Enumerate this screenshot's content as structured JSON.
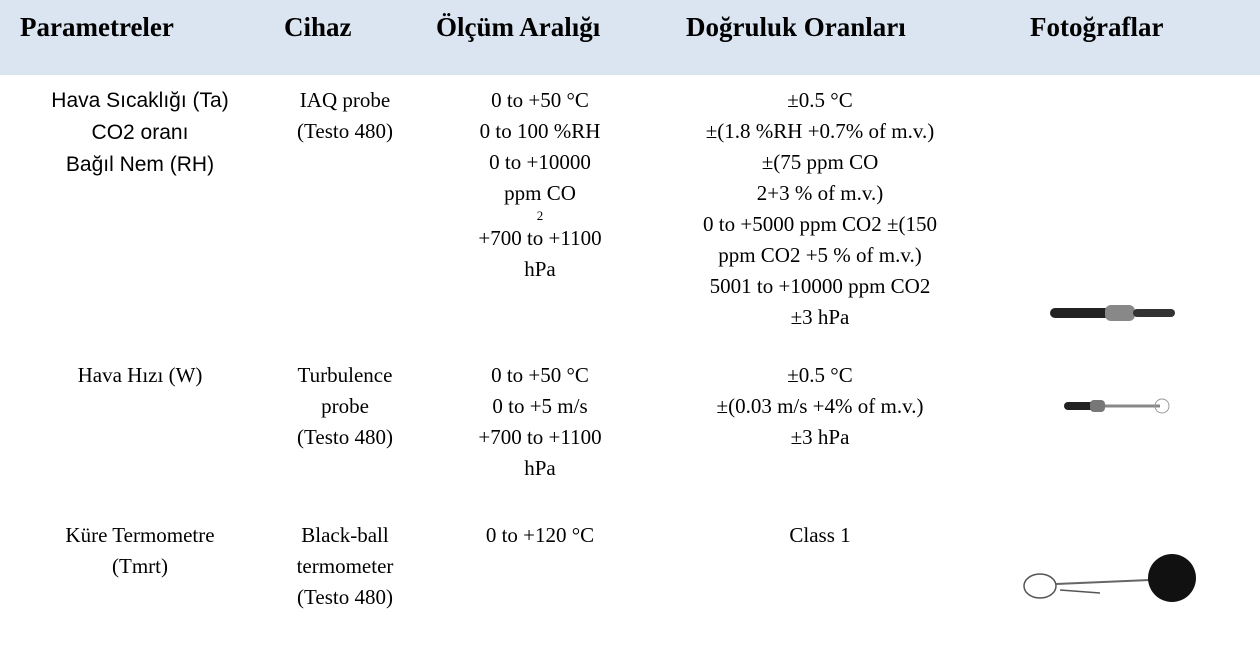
{
  "table": {
    "header": [
      "Parametreler",
      "Cihaz",
      "Ölçüm Aralığı",
      "Doğruluk Oranları",
      "Fotoğraflar"
    ],
    "rows": [
      [
        [
          "Hava Sıcaklığı (Ta)",
          "CO2 oranı",
          "Bağıl Nem (RH)"
        ],
        [
          "IAQ probe",
          "(Testo 480)"
        ],
        [
          "0 to +50 °C",
          "0 to 100 %RH",
          "0 to +10000",
          "ppm CO",
          "2",
          "+700 to +1100",
          "hPa"
        ],
        [
          "±0.5 °C",
          "±(1.8 %RH +0.7% of m.v.)",
          "±(75 ppm CO",
          "2+3 % of m.v.)",
          "0 to +5000 ppm CO2 ±(150",
          "ppm CO2 +5 % of m.v.)",
          "5001 to +10000 ppm CO2",
          "±3 hPa"
        ]
      ],
      [
        [
          "Hava Hızı (W)"
        ],
        [
          "Turbulence",
          "probe",
          "(Testo 480)"
        ],
        [
          "0 to +50 °C",
          "0 to +5 m/s",
          "+700 to +1100",
          "hPa"
        ],
        [
          "±0.5 °C",
          "±(0.03 m/s +4% of m.v.)",
          "±3 hPa"
        ]
      ],
      [
        [
          "Küre Termometre",
          "(Tmrt)"
        ],
        [
          "Black-ball",
          "termometer",
          "(Testo 480)"
        ],
        [
          "0 to +120 °C"
        ],
        [
          "Class 1"
        ]
      ]
    ]
  }
}
